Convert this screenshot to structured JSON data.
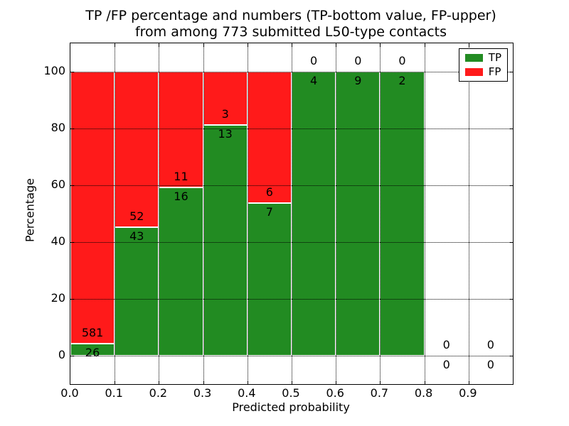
{
  "title": {
    "line1": "TP /FP percentage and numbers (TP-bottom value, FP-upper)",
    "line2": "from among 773 submitted L50-type contacts"
  },
  "axes": {
    "xlabel": "Predicted probability",
    "ylabel": "Percentage",
    "xlim": [
      0,
      1
    ],
    "ylim": [
      -10,
      110
    ],
    "xticks": [
      {
        "value": 0.0,
        "label": "0.0"
      },
      {
        "value": 0.1,
        "label": "0.1"
      },
      {
        "value": 0.2,
        "label": "0.2"
      },
      {
        "value": 0.3,
        "label": "0.3"
      },
      {
        "value": 0.4,
        "label": "0.4"
      },
      {
        "value": 0.5,
        "label": "0.5"
      },
      {
        "value": 0.6,
        "label": "0.6"
      },
      {
        "value": 0.7,
        "label": "0.7"
      },
      {
        "value": 0.8,
        "label": "0.8"
      },
      {
        "value": 0.9,
        "label": "0.9"
      }
    ],
    "yticks": [
      {
        "value": 0,
        "label": "0"
      },
      {
        "value": 20,
        "label": "20"
      },
      {
        "value": 40,
        "label": "40"
      },
      {
        "value": 60,
        "label": "60"
      },
      {
        "value": 80,
        "label": "80"
      },
      {
        "value": 100,
        "label": "100"
      }
    ],
    "grid_style": "dotted"
  },
  "legend": {
    "position": "upper-right",
    "items": [
      {
        "label": "TP",
        "color": "#228B22"
      },
      {
        "label": "FP",
        "color": "#FF1A1A"
      }
    ]
  },
  "colors": {
    "tp": "#228B22",
    "fp": "#FF1A1A",
    "grid": "#000000",
    "text": "#000000",
    "bar_edge": "#ffffff"
  },
  "chart_data": {
    "type": "bar",
    "stacked": true,
    "normalized_to_percent": true,
    "title": "TP /FP percentage and numbers (TP-bottom value, FP-upper) from among 773 submitted L50-type contacts",
    "xlabel": "Predicted probability",
    "ylabel": "Percentage",
    "xlim": [
      0,
      1
    ],
    "ylim": [
      -10,
      110
    ],
    "grid": true,
    "legend_position": "upper-right",
    "total_contacts": 773,
    "x_bins": [
      "0.0-0.1",
      "0.1-0.2",
      "0.2-0.3",
      "0.3-0.4",
      "0.4-0.5",
      "0.5-0.6",
      "0.6-0.7",
      "0.7-0.8",
      "0.8-0.9",
      "0.9-1.0"
    ],
    "series": [
      {
        "name": "TP",
        "color": "#228B22",
        "values": [
          26,
          43,
          16,
          13,
          7,
          4,
          9,
          2,
          0,
          0
        ]
      },
      {
        "name": "FP",
        "color": "#FF1A1A",
        "values": [
          581,
          52,
          11,
          3,
          6,
          0,
          0,
          0,
          0,
          0
        ]
      }
    ],
    "tp_percent_by_bin": [
      4.28,
      45.26,
      59.26,
      81.25,
      53.85,
      100,
      100,
      100,
      0,
      0
    ]
  }
}
